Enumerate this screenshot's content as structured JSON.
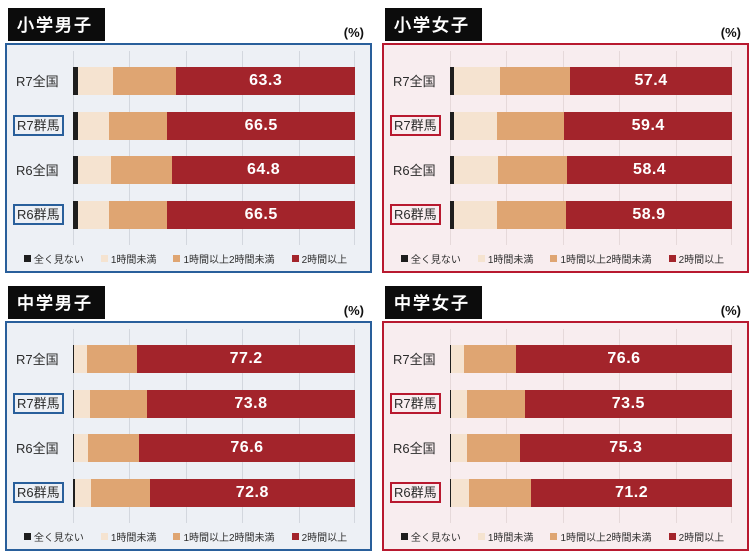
{
  "unit_label": "(%)",
  "legend": [
    {
      "label": "全く見ない",
      "color": "#1e1e1e"
    },
    {
      "label": "1時間未満",
      "color": "#f5e3d0"
    },
    {
      "label": "1時間以上2時間未満",
      "color": "#dfa572"
    },
    {
      "label": "2時間以上",
      "color": "#a3242b"
    }
  ],
  "panels": [
    {
      "title": "小学男子",
      "accent": "#295f9b",
      "bg": "#edf0f5",
      "grid": "#d3d7de",
      "rows": [
        {
          "label": "R7全国",
          "boxed": false,
          "values": [
            1.9,
            12.2,
            22.6,
            63.3
          ],
          "display": "63.3"
        },
        {
          "label": "R7群馬",
          "boxed": true,
          "values": [
            1.9,
            10.8,
            20.8,
            66.5
          ],
          "display": "66.5"
        },
        {
          "label": "R6全国",
          "boxed": false,
          "values": [
            1.9,
            11.6,
            21.7,
            64.8
          ],
          "display": "64.8"
        },
        {
          "label": "R6群馬",
          "boxed": true,
          "values": [
            1.9,
            10.8,
            20.8,
            66.5
          ],
          "display": "66.5"
        }
      ]
    },
    {
      "title": "小学女子",
      "accent": "#b8192f",
      "bg": "#f8edef",
      "grid": "#e6d9da",
      "rows": [
        {
          "label": "R7全国",
          "boxed": false,
          "values": [
            1.5,
            16.4,
            24.7,
            57.4
          ],
          "display": "57.4"
        },
        {
          "label": "R7群馬",
          "boxed": true,
          "values": [
            1.5,
            15.0,
            24.1,
            59.4
          ],
          "display": "59.4"
        },
        {
          "label": "R6全国",
          "boxed": false,
          "values": [
            1.5,
            15.6,
            24.5,
            58.4
          ],
          "display": "58.4"
        },
        {
          "label": "R6群馬",
          "boxed": true,
          "values": [
            1.5,
            15.3,
            24.3,
            58.9
          ],
          "display": "58.9"
        }
      ]
    },
    {
      "title": "中学男子",
      "accent": "#295f9b",
      "bg": "#edf0f5",
      "grid": "#d3d7de",
      "rows": [
        {
          "label": "R7全国",
          "boxed": false,
          "values": [
            0.4,
            4.6,
            17.8,
            77.2
          ],
          "display": "77.2"
        },
        {
          "label": "R7群馬",
          "boxed": true,
          "values": [
            0.5,
            5.7,
            20.0,
            73.8
          ],
          "display": "73.8"
        },
        {
          "label": "R6全国",
          "boxed": false,
          "values": [
            0.4,
            5.0,
            18.0,
            76.6
          ],
          "display": "76.6"
        },
        {
          "label": "R6群馬",
          "boxed": true,
          "values": [
            0.8,
            5.6,
            20.8,
            72.8
          ],
          "display": "72.8"
        }
      ]
    },
    {
      "title": "中学女子",
      "accent": "#b8192f",
      "bg": "#f8edef",
      "grid": "#e6d9da",
      "rows": [
        {
          "label": "R7全国",
          "boxed": false,
          "values": [
            0.3,
            4.6,
            18.5,
            76.6
          ],
          "display": "76.6"
        },
        {
          "label": "R7群馬",
          "boxed": true,
          "values": [
            0.4,
            5.8,
            20.3,
            73.5
          ],
          "display": "73.5"
        },
        {
          "label": "R6全国",
          "boxed": false,
          "values": [
            0.4,
            5.5,
            18.8,
            75.3
          ],
          "display": "75.3"
        },
        {
          "label": "R6群馬",
          "boxed": true,
          "values": [
            0.4,
            6.2,
            22.2,
            71.2
          ],
          "display": "71.2"
        }
      ]
    }
  ],
  "chart_data": [
    {
      "type": "bar",
      "orientation": "horizontal",
      "stacked": true,
      "title": "小学男子",
      "unit": "%",
      "xlim": [
        0,
        100
      ],
      "legend_position": "bottom",
      "grid": true,
      "categories": [
        "R7全国",
        "R7群馬",
        "R6全国",
        "R6群馬"
      ],
      "series": [
        {
          "name": "全く見ない",
          "values": [
            1.9,
            1.9,
            1.9,
            1.9
          ]
        },
        {
          "name": "1時間未満",
          "values": [
            12.2,
            10.8,
            11.6,
            10.8
          ]
        },
        {
          "name": "1時間以上2時間未満",
          "values": [
            22.6,
            20.8,
            21.7,
            20.8
          ]
        },
        {
          "name": "2時間以上",
          "values": [
            63.3,
            66.5,
            64.8,
            66.5
          ]
        }
      ],
      "data_labels": [
        "63.3",
        "66.5",
        "64.8",
        "66.5"
      ]
    },
    {
      "type": "bar",
      "orientation": "horizontal",
      "stacked": true,
      "title": "小学女子",
      "unit": "%",
      "xlim": [
        0,
        100
      ],
      "legend_position": "bottom",
      "grid": true,
      "categories": [
        "R7全国",
        "R7群馬",
        "R6全国",
        "R6群馬"
      ],
      "series": [
        {
          "name": "全く見ない",
          "values": [
            1.5,
            1.5,
            1.5,
            1.5
          ]
        },
        {
          "name": "1時間未満",
          "values": [
            16.4,
            15.0,
            15.6,
            15.3
          ]
        },
        {
          "name": "1時間以上2時間未満",
          "values": [
            24.7,
            24.1,
            24.5,
            24.3
          ]
        },
        {
          "name": "2時間以上",
          "values": [
            57.4,
            59.4,
            58.4,
            58.9
          ]
        }
      ],
      "data_labels": [
        "57.4",
        "59.4",
        "58.4",
        "58.9"
      ]
    },
    {
      "type": "bar",
      "orientation": "horizontal",
      "stacked": true,
      "title": "中学男子",
      "unit": "%",
      "xlim": [
        0,
        100
      ],
      "legend_position": "bottom",
      "grid": true,
      "categories": [
        "R7全国",
        "R7群馬",
        "R6全国",
        "R6群馬"
      ],
      "series": [
        {
          "name": "全く見ない",
          "values": [
            0.4,
            0.5,
            0.4,
            0.8
          ]
        },
        {
          "name": "1時間未満",
          "values": [
            4.6,
            5.7,
            5.0,
            5.6
          ]
        },
        {
          "name": "1時間以上2時間未満",
          "values": [
            17.8,
            20.0,
            18.0,
            20.8
          ]
        },
        {
          "name": "2時間以上",
          "values": [
            77.2,
            73.8,
            76.6,
            72.8
          ]
        }
      ],
      "data_labels": [
        "77.2",
        "73.8",
        "76.6",
        "72.8"
      ]
    },
    {
      "type": "bar",
      "orientation": "horizontal",
      "stacked": true,
      "title": "中学女子",
      "unit": "%",
      "xlim": [
        0,
        100
      ],
      "legend_position": "bottom",
      "grid": true,
      "categories": [
        "R7全国",
        "R7群馬",
        "R6全国",
        "R6群馬"
      ],
      "series": [
        {
          "name": "全く見ない",
          "values": [
            0.3,
            0.4,
            0.4,
            0.4
          ]
        },
        {
          "name": "1時間未満",
          "values": [
            4.6,
            5.8,
            5.5,
            6.2
          ]
        },
        {
          "name": "1時間以上2時間未満",
          "values": [
            18.5,
            20.3,
            18.8,
            22.2
          ]
        },
        {
          "name": "2時間以上",
          "values": [
            76.6,
            73.5,
            75.3,
            71.2
          ]
        }
      ],
      "data_labels": [
        "76.6",
        "73.5",
        "75.3",
        "71.2"
      ]
    }
  ]
}
